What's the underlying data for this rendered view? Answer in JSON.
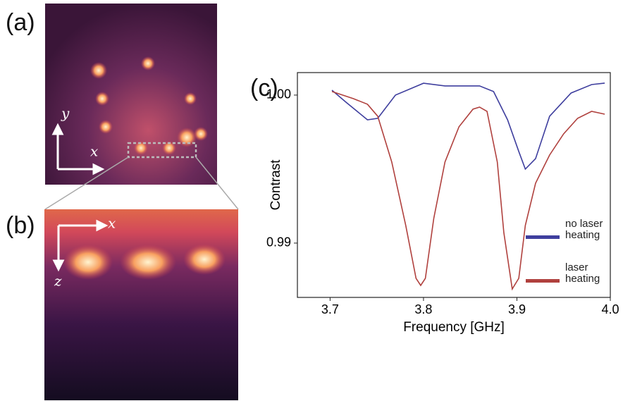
{
  "panels": {
    "a": "(a)",
    "b": "(b)",
    "c": "(c)"
  },
  "image_axes": {
    "a_x": "x",
    "a_y": "y",
    "b_x": "x",
    "b_z": "z"
  },
  "chart_data": {
    "type": "line",
    "xlabel": "Frequency [GHz]",
    "ylabel": "Contrast",
    "xlim": [
      3.665,
      4.0
    ],
    "ylim": [
      0.98633,
      1.00152
    ],
    "xticks": [
      3.7,
      3.8,
      3.9,
      {
        "value": 4.0,
        "label": "4.0"
      }
    ],
    "yticks": [
      {
        "value": 0.99,
        "label": "0.99"
      },
      {
        "value": 1.0,
        "label": "1.00"
      }
    ],
    "legend": "lower right",
    "series": [
      {
        "name": "no laser heating",
        "color": "#3f3f9e",
        "x": [
          3.702,
          3.717,
          3.74,
          3.751,
          3.77,
          3.8,
          3.823,
          3.86,
          3.875,
          3.89,
          3.902,
          3.909,
          3.92,
          3.935,
          3.958,
          3.98,
          3.994
        ],
        "values": [
          1.00033,
          0.99952,
          0.99833,
          0.99843,
          1.0,
          1.0008,
          1.00062,
          1.00062,
          1.00024,
          0.99833,
          0.99619,
          0.995,
          0.99571,
          0.99857,
          1.00014,
          1.00071,
          1.00081
        ]
      },
      {
        "name": "laser heating",
        "color": "#b0413e",
        "x": [
          3.702,
          3.725,
          3.74,
          3.751,
          3.766,
          3.781,
          3.792,
          3.797,
          3.802,
          3.811,
          3.823,
          3.838,
          3.853,
          3.86,
          3.868,
          3.879,
          3.886,
          3.895,
          3.902,
          3.909,
          3.92,
          3.935,
          3.95,
          3.965,
          3.98,
          3.994
        ],
        "values": [
          1.00024,
          0.99976,
          0.99938,
          0.99857,
          0.99548,
          0.99119,
          0.98762,
          0.98714,
          0.98762,
          0.99167,
          0.99548,
          0.99786,
          0.99905,
          0.99919,
          0.9989,
          0.99548,
          0.99071,
          0.9869,
          0.98762,
          0.99119,
          0.99405,
          0.99595,
          0.99738,
          0.99843,
          0.9989,
          0.99871
        ]
      }
    ]
  }
}
